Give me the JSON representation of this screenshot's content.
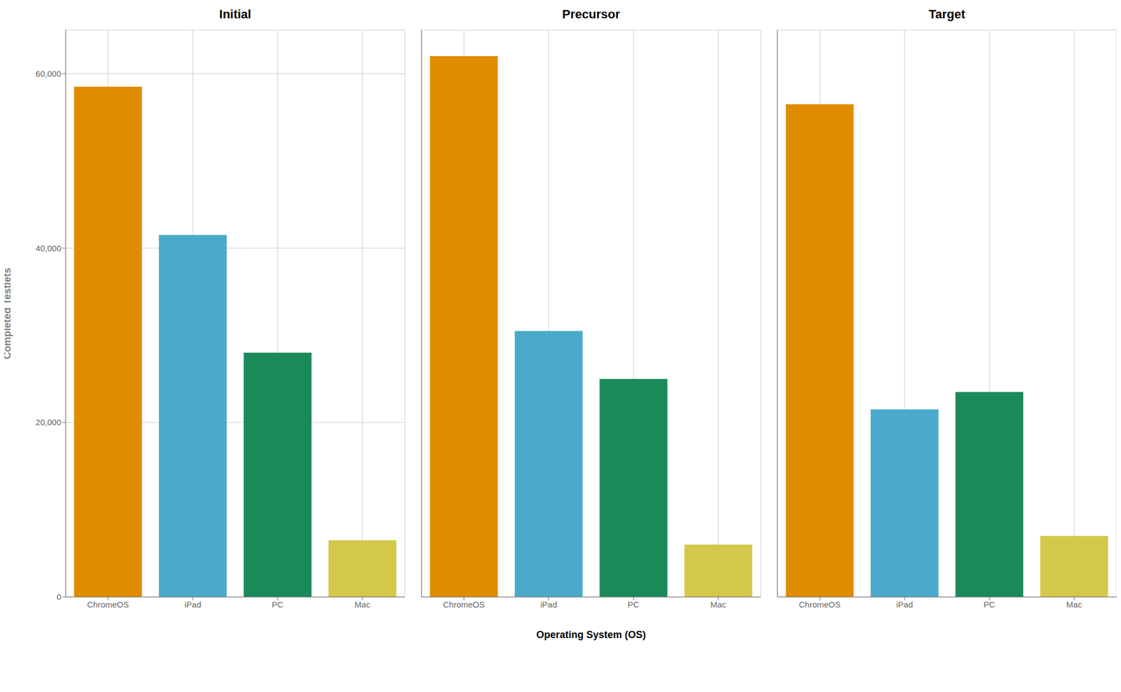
{
  "chart_data": [
    {
      "type": "bar",
      "title": "Initial",
      "categories": [
        "ChromeOS",
        "iPad",
        "PC",
        "Mac"
      ],
      "values": [
        58500,
        41500,
        28000,
        6500
      ],
      "colors": [
        "#E08C00",
        "#4BAACB",
        "#1B8A5A",
        "#D4C84A"
      ],
      "ylabel": "Completed Testlets",
      "ylim": [
        0,
        65000
      ],
      "yticks": [
        0,
        {
          "value": 20000,
          "label": "20,000"
        },
        {
          "value": 40000,
          "label": "40,000"
        },
        {
          "value": 60000,
          "label": "60,000"
        }
      ],
      "grid": true
    },
    {
      "type": "bar",
      "title": "Precursor",
      "categories": [
        "ChromeOS",
        "iPad",
        "PC",
        "Mac"
      ],
      "values": [
        62000,
        30500,
        25000,
        6000
      ],
      "colors": [
        "#E08C00",
        "#4BAACB",
        "#1B8A5A",
        "#D4C84A"
      ],
      "xlabel": "Operating System (OS)",
      "ylim": [
        0,
        65000
      ],
      "yticks": [
        0,
        {
          "value": 20000,
          "label": "20,000"
        },
        {
          "value": 40000,
          "label": "40,000"
        },
        {
          "value": 60000,
          "label": "60,000"
        }
      ],
      "grid": true,
      "tick_labels": "x"
    },
    {
      "type": "bar",
      "title": "Target",
      "categories": [
        "ChromeOS",
        "iPad",
        "PC",
        "Mac"
      ],
      "values": [
        56500,
        21500,
        23500,
        7000
      ],
      "colors": [
        "#E08C00",
        "#4BAACB",
        "#1B8A5A",
        "#D4C84A"
      ],
      "ylim": [
        0,
        65000
      ],
      "yticks": [
        0,
        {
          "value": 20000,
          "label": "20,000"
        },
        {
          "value": 40000,
          "label": "40,000"
        },
        {
          "value": 60000,
          "label": "60,000"
        }
      ],
      "grid": true,
      "tick_labels": "x"
    }
  ]
}
